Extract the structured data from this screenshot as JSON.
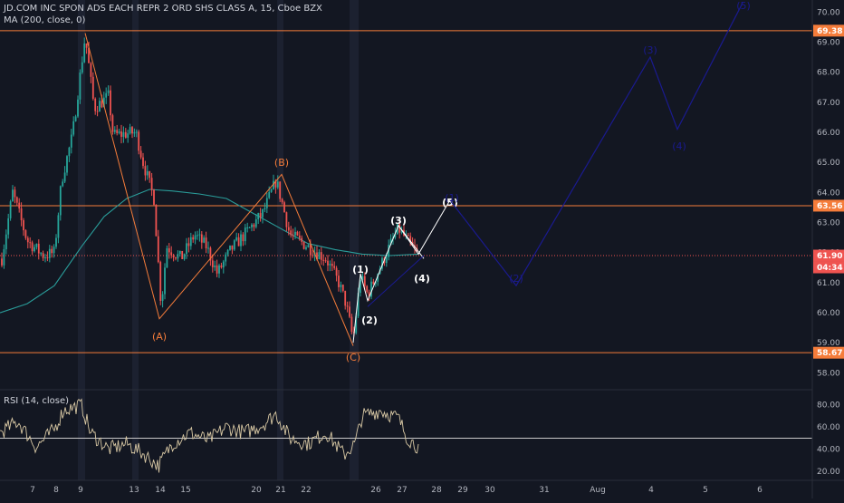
{
  "legend": {
    "symbol_line": "JD.COM INC SPON ADS EACH REPR 2 ORD SHS CLASS A, 15, Cboe BZX",
    "ma_line": "MA (200, close, 0)",
    "rsi_line": "RSI (14, close)"
  },
  "colors": {
    "background": "#131722",
    "candle_up": "#26a69a",
    "candle_down": "#ef5350",
    "ma": "#2a9d9a",
    "orange": "#f57c3a",
    "projection": "#1a1a8f",
    "rsi": "#d8c8a4",
    "current_price": "#ef5350"
  },
  "chart_data": {
    "type": "candlestick",
    "y_axis": {
      "ticks": [
        "70.00",
        "69.00",
        "68.00",
        "67.00",
        "66.00",
        "65.00",
        "64.00",
        "63.00",
        "62.00",
        "61.00",
        "60.00",
        "59.00",
        "58.00"
      ],
      "ylim": [
        57.5,
        70.4
      ]
    },
    "rsi_axis": {
      "ticks": [
        "80.00",
        "60.00",
        "40.00",
        "20.00"
      ],
      "ylim": [
        12,
        92
      ],
      "reference_level": 50
    },
    "x_axis": {
      "ticks": [
        "7",
        "8",
        "9",
        "13",
        "14",
        "15",
        "20",
        "21",
        "22",
        "26",
        "27",
        "28",
        "29",
        "30",
        "31",
        "Aug",
        "4",
        "5",
        "6"
      ]
    },
    "horizontal_levels": [
      {
        "price": 69.38,
        "label": "69.38"
      },
      {
        "price": 63.56,
        "label": "63.56"
      },
      {
        "price": 58.67,
        "label": "58.67"
      }
    ],
    "current_price": {
      "price": 61.9,
      "label": "61.90",
      "countdown": "04:34"
    },
    "wave_labels_orange": [
      "(A)",
      "(B)",
      "(C)"
    ],
    "wave_labels_white": [
      "(1)",
      "(2)",
      "(3)",
      "(4)",
      "(5)"
    ],
    "projection_labels": [
      "(1)",
      "(2)",
      "(3)",
      "(4)",
      "(5)"
    ]
  }
}
